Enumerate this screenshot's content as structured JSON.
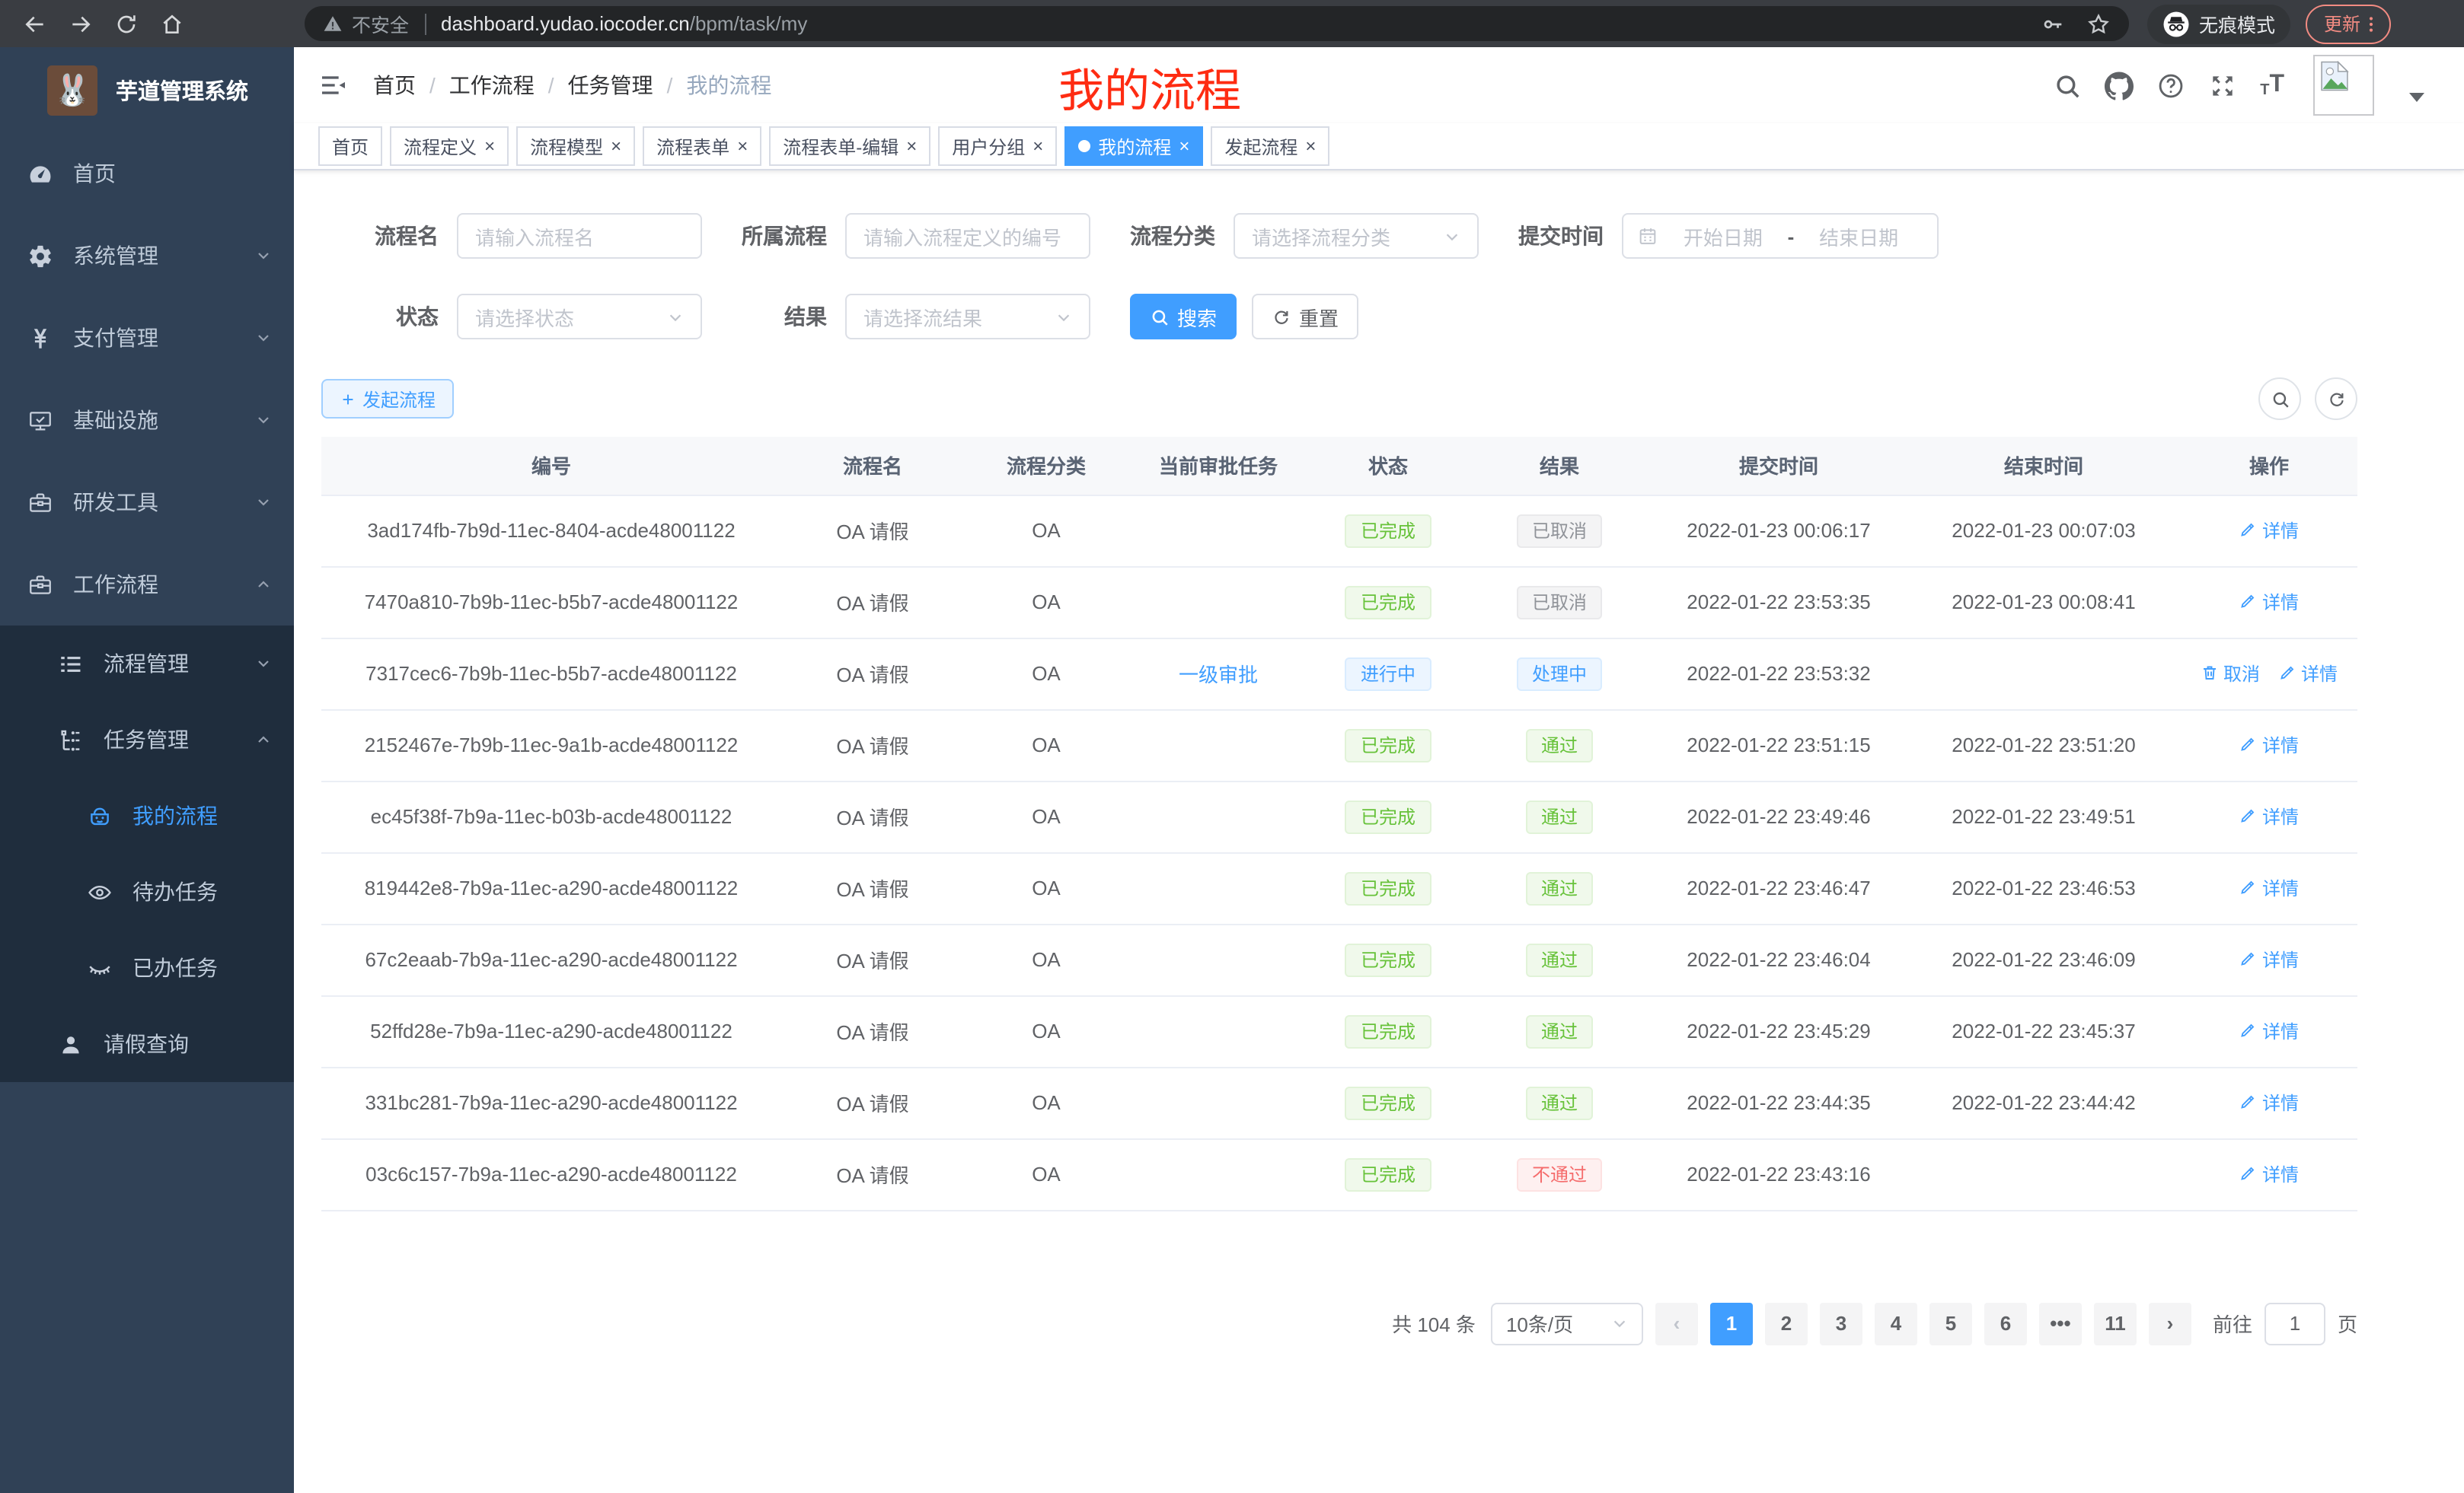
{
  "browser": {
    "security_label": "不安全",
    "url_domain": "dashboard.yudao.iocoder.cn",
    "url_path": "/bpm/task/my",
    "incognito_label": "无痕模式",
    "update_label": "更新"
  },
  "annotation": {
    "title": "我的流程",
    "color": "#fe2c12"
  },
  "sidebar": {
    "app_title": "芋道管理系统",
    "items": [
      {
        "label": "首页",
        "icon": "gauge",
        "level": 1
      },
      {
        "label": "系统管理",
        "icon": "gear",
        "level": 1,
        "chevron": "down"
      },
      {
        "label": "支付管理",
        "icon": "yen",
        "level": 1,
        "chevron": "down"
      },
      {
        "label": "基础设施",
        "icon": "monitor",
        "level": 1,
        "chevron": "down"
      },
      {
        "label": "研发工具",
        "icon": "toolbox",
        "level": 1,
        "chevron": "down"
      },
      {
        "label": "工作流程",
        "icon": "briefcase",
        "level": 1,
        "chevron": "up"
      },
      {
        "label": "流程管理",
        "icon": "list-tree",
        "level": 2,
        "chevron": "down",
        "submenu": true
      },
      {
        "label": "任务管理",
        "icon": "flow",
        "level": 2,
        "chevron": "up",
        "submenu": true
      },
      {
        "label": "我的流程",
        "icon": "robot",
        "level": 3,
        "submenu": true,
        "active": true
      },
      {
        "label": "待办任务",
        "icon": "eye",
        "level": 3,
        "submenu": true
      },
      {
        "label": "已办任务",
        "icon": "eye-closed",
        "level": 3,
        "submenu": true
      },
      {
        "label": "请假查询",
        "icon": "user",
        "level": 2,
        "submenu": true
      }
    ]
  },
  "breadcrumb": {
    "items": [
      "首页",
      "工作流程",
      "任务管理",
      "我的流程"
    ]
  },
  "tabs": [
    {
      "label": "首页",
      "closable": false,
      "active": false
    },
    {
      "label": "流程定义",
      "closable": true,
      "active": false
    },
    {
      "label": "流程模型",
      "closable": true,
      "active": false
    },
    {
      "label": "流程表单",
      "closable": true,
      "active": false
    },
    {
      "label": "流程表单-编辑",
      "closable": true,
      "active": false
    },
    {
      "label": "用户分组",
      "closable": true,
      "active": false
    },
    {
      "label": "我的流程",
      "closable": true,
      "active": true
    },
    {
      "label": "发起流程",
      "closable": true,
      "active": false
    }
  ],
  "filters": {
    "process_name_label": "流程名",
    "process_name_placeholder": "请输入流程名",
    "parent_process_label": "所属流程",
    "parent_process_placeholder": "请输入流程定义的编号",
    "category_label": "流程分类",
    "category_placeholder": "请选择流程分类",
    "submit_time_label": "提交时间",
    "start_date_placeholder": "开始日期",
    "range_separator": "-",
    "end_date_placeholder": "结束日期",
    "status_label": "状态",
    "status_placeholder": "请选择状态",
    "result_label": "结果",
    "result_placeholder": "请选择流结果",
    "search_button": "搜索",
    "reset_button": "重置"
  },
  "toolbar": {
    "create_button": "发起流程"
  },
  "table": {
    "columns": [
      "编号",
      "流程名",
      "流程分类",
      "当前审批任务",
      "状态",
      "结果",
      "提交时间",
      "结束时间",
      "操作"
    ],
    "rows": [
      {
        "id": "3ad174fb-7b9d-11ec-8404-acde48001122",
        "name": "OA 请假",
        "category": "OA",
        "task": "",
        "status": {
          "label": "已完成",
          "type": "success"
        },
        "result": {
          "label": "已取消",
          "type": "info"
        },
        "submit_time": "2022-01-23 00:06:17",
        "end_time": "2022-01-23 00:07:03",
        "actions": [
          {
            "label": "详情",
            "icon": "edit"
          }
        ]
      },
      {
        "id": "7470a810-7b9b-11ec-b5b7-acde48001122",
        "name": "OA 请假",
        "category": "OA",
        "task": "",
        "status": {
          "label": "已完成",
          "type": "success"
        },
        "result": {
          "label": "已取消",
          "type": "info"
        },
        "submit_time": "2022-01-22 23:53:35",
        "end_time": "2022-01-23 00:08:41",
        "actions": [
          {
            "label": "详情",
            "icon": "edit"
          }
        ]
      },
      {
        "id": "7317cec6-7b9b-11ec-b5b7-acde48001122",
        "name": "OA 请假",
        "category": "OA",
        "task": "一级审批",
        "status": {
          "label": "进行中",
          "type": "primary"
        },
        "result": {
          "label": "处理中",
          "type": "primary"
        },
        "submit_time": "2022-01-22 23:53:32",
        "end_time": "",
        "actions": [
          {
            "label": "取消",
            "icon": "trash"
          },
          {
            "label": "详情",
            "icon": "edit"
          }
        ]
      },
      {
        "id": "2152467e-7b9b-11ec-9a1b-acde48001122",
        "name": "OA 请假",
        "category": "OA",
        "task": "",
        "status": {
          "label": "已完成",
          "type": "success"
        },
        "result": {
          "label": "通过",
          "type": "success"
        },
        "submit_time": "2022-01-22 23:51:15",
        "end_time": "2022-01-22 23:51:20",
        "actions": [
          {
            "label": "详情",
            "icon": "edit"
          }
        ]
      },
      {
        "id": "ec45f38f-7b9a-11ec-b03b-acde48001122",
        "name": "OA 请假",
        "category": "OA",
        "task": "",
        "status": {
          "label": "已完成",
          "type": "success"
        },
        "result": {
          "label": "通过",
          "type": "success"
        },
        "submit_time": "2022-01-22 23:49:46",
        "end_time": "2022-01-22 23:49:51",
        "actions": [
          {
            "label": "详情",
            "icon": "edit"
          }
        ]
      },
      {
        "id": "819442e8-7b9a-11ec-a290-acde48001122",
        "name": "OA 请假",
        "category": "OA",
        "task": "",
        "status": {
          "label": "已完成",
          "type": "success"
        },
        "result": {
          "label": "通过",
          "type": "success"
        },
        "submit_time": "2022-01-22 23:46:47",
        "end_time": "2022-01-22 23:46:53",
        "actions": [
          {
            "label": "详情",
            "icon": "edit"
          }
        ]
      },
      {
        "id": "67c2eaab-7b9a-11ec-a290-acde48001122",
        "name": "OA 请假",
        "category": "OA",
        "task": "",
        "status": {
          "label": "已完成",
          "type": "success"
        },
        "result": {
          "label": "通过",
          "type": "success"
        },
        "submit_time": "2022-01-22 23:46:04",
        "end_time": "2022-01-22 23:46:09",
        "actions": [
          {
            "label": "详情",
            "icon": "edit"
          }
        ]
      },
      {
        "id": "52ffd28e-7b9a-11ec-a290-acde48001122",
        "name": "OA 请假",
        "category": "OA",
        "task": "",
        "status": {
          "label": "已完成",
          "type": "success"
        },
        "result": {
          "label": "通过",
          "type": "success"
        },
        "submit_time": "2022-01-22 23:45:29",
        "end_time": "2022-01-22 23:45:37",
        "actions": [
          {
            "label": "详情",
            "icon": "edit"
          }
        ]
      },
      {
        "id": "331bc281-7b9a-11ec-a290-acde48001122",
        "name": "OA 请假",
        "category": "OA",
        "task": "",
        "status": {
          "label": "已完成",
          "type": "success"
        },
        "result": {
          "label": "通过",
          "type": "success"
        },
        "submit_time": "2022-01-22 23:44:35",
        "end_time": "2022-01-22 23:44:42",
        "actions": [
          {
            "label": "详情",
            "icon": "edit"
          }
        ]
      },
      {
        "id": "03c6c157-7b9a-11ec-a290-acde48001122",
        "name": "OA 请假",
        "category": "OA",
        "task": "",
        "status": {
          "label": "已完成",
          "type": "success"
        },
        "result": {
          "label": "不通过",
          "type": "danger"
        },
        "submit_time": "2022-01-22 23:43:16",
        "end_time": "",
        "actions": [
          {
            "label": "详情",
            "icon": "edit"
          }
        ]
      }
    ]
  },
  "pagination": {
    "total_text": "共 104 条",
    "page_size": "10条/页",
    "pages": [
      {
        "label": "1",
        "active": true
      },
      {
        "label": "2"
      },
      {
        "label": "3"
      },
      {
        "label": "4"
      },
      {
        "label": "5"
      },
      {
        "label": "6"
      },
      {
        "label": "•••",
        "ellipsis": true
      },
      {
        "label": "11"
      }
    ],
    "goto_label": "前往",
    "goto_value": "1",
    "goto_suffix": "页"
  },
  "colors": {
    "accent": "#409eff",
    "success": "#67c23a",
    "danger": "#f56c6c",
    "info": "#909399",
    "sidebar_bg": "#304156",
    "submenu_bg": "#1f2d3d",
    "annotation_red": "#fe2c12"
  }
}
